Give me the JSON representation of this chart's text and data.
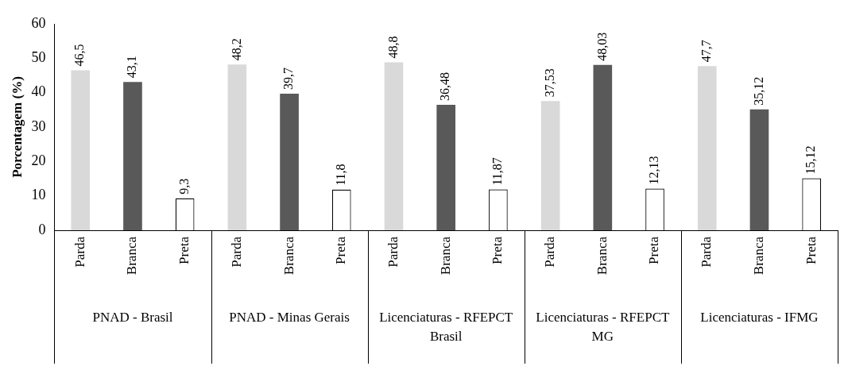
{
  "chart_data": {
    "type": "bar",
    "ylabel": "Porcentagem (%)",
    "categories": [
      "PNAD - Brasil",
      "PNAD - Minas Gerais",
      "Licenciaturas - RFEPCT Brasil",
      "Licenciaturas - RFEPCT MG",
      "Licenciaturas - IFMG"
    ],
    "series": [
      {
        "name": "Parda",
        "color": "#d9d9d9",
        "values": [
          46.5,
          48.2,
          48.8,
          37.53,
          47.7
        ],
        "value_labels": [
          "46,5",
          "48,2",
          "48,8",
          "37,53",
          "47,7"
        ]
      },
      {
        "name": "Branca",
        "color": "#595959",
        "values": [
          43.1,
          39.7,
          36.48,
          48.03,
          35.12
        ],
        "value_labels": [
          "43,1",
          "39,7",
          "36,48",
          "48,03",
          "35,12"
        ]
      },
      {
        "name": "Preta",
        "color": "#ffffff",
        "values": [
          9.3,
          11.8,
          11.87,
          12.13,
          15.12
        ],
        "value_labels": [
          "9,3",
          "11,8",
          "11,87",
          "12,13",
          "15,12"
        ]
      }
    ],
    "ylim": [
      0,
      60
    ],
    "yticks": [
      0,
      10,
      20,
      30,
      40,
      50,
      60
    ],
    "grid": false,
    "legend": false
  }
}
